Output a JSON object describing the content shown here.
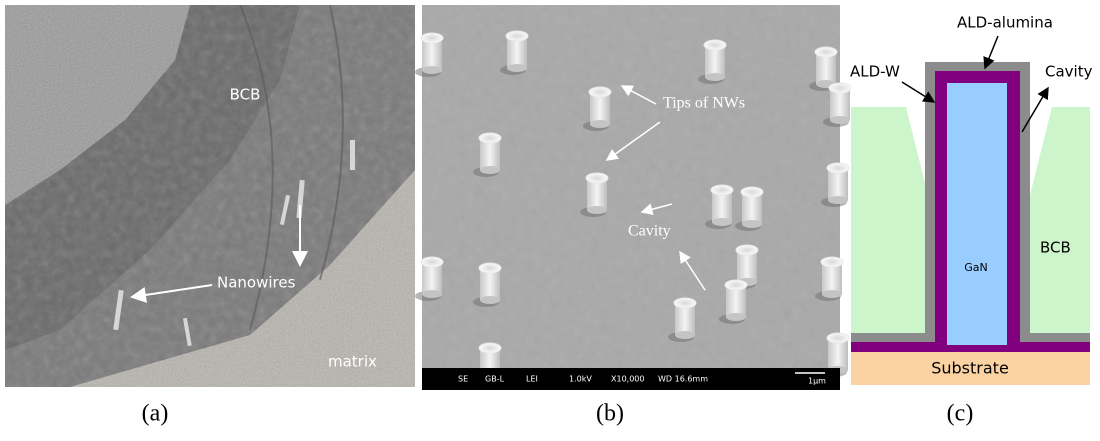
{
  "panels": [
    {
      "caption": "(a)",
      "labels": [
        "BCB",
        "Nanowires",
        "matrix"
      ]
    },
    {
      "caption": "(b)",
      "labels": [
        "Tips of NWs",
        "Cavity"
      ],
      "info_bar": [
        "SE",
        "GB-L",
        "LEI",
        "1.0kV",
        "X10,000",
        "WD 16.6mm",
        "1μm"
      ]
    },
    {
      "caption": "(c)",
      "labels": [
        "ALD-alumina",
        "ALD-W",
        "Cavity",
        "GaN",
        "BCB",
        "Substrate"
      ]
    }
  ]
}
